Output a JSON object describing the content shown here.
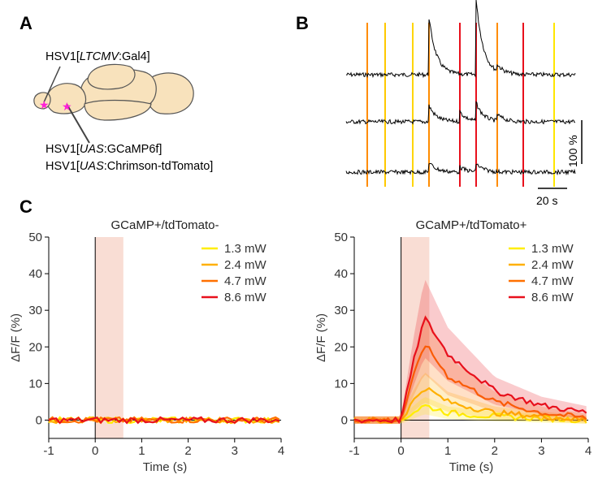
{
  "panels": {
    "a_letter": "A",
    "b_letter": "B",
    "c_letter": "C"
  },
  "panel_a": {
    "label_top_pre": "HSV1[",
    "label_top_it": "LTCMV",
    "label_top_post": ":Gal4]",
    "label_mid_pre": "HSV1[",
    "label_mid_it": "UAS",
    "label_mid_post": ":GCaMP6f]",
    "label_bot_pre": "HSV1[",
    "label_bot_it": "UAS",
    "label_bot_post": ":Chrimson-tdTomato]",
    "brain_fill": "#f8e2bc",
    "injection_color": "#ff1fd8"
  },
  "panel_b": {
    "scale_y_label": "100 %",
    "scale_x_label": "20 s",
    "stim_colors": [
      "#ff8c00",
      "#ffc800",
      "#ffd500",
      "#ff8c00",
      "#e8101c",
      "#e8101c",
      "#ff8c00",
      "#e8101c",
      "#ffe600"
    ]
  },
  "chart_data": [
    {
      "type": "line",
      "title": "GCaMP+/tdTomato-",
      "xlabel": "Time (s)",
      "ylabel": "ΔF/F (%)",
      "xlim": [
        -1,
        4
      ],
      "ylim": [
        -5,
        50
      ],
      "xticks": [
        "-1",
        "0",
        "1",
        "2",
        "3",
        "4"
      ],
      "yticks": [
        "0",
        "10",
        "20",
        "30",
        "40",
        "50"
      ],
      "stim_window": [
        0,
        0.5
      ],
      "legend_position": "top-right",
      "series": [
        {
          "name": "1.3 mW",
          "color": "#ffee00",
          "x": [
            -1,
            0,
            0.5,
            1,
            2,
            3,
            4
          ],
          "y": [
            0,
            0,
            0,
            0,
            0,
            0,
            0
          ]
        },
        {
          "name": "2.4 mW",
          "color": "#ffb000",
          "x": [
            -1,
            0,
            0.5,
            1,
            2,
            3,
            4
          ],
          "y": [
            0,
            0,
            0,
            0,
            0,
            0,
            0
          ]
        },
        {
          "name": "4.7 mW",
          "color": "#ff7000",
          "x": [
            -1,
            0,
            0.5,
            1,
            2,
            3,
            4
          ],
          "y": [
            0,
            0,
            0,
            0,
            0,
            0,
            0
          ]
        },
        {
          "name": "8.6 mW",
          "color": "#e8101c",
          "x": [
            -1,
            0,
            0.5,
            1,
            2,
            3,
            4
          ],
          "y": [
            0,
            0,
            0,
            0,
            0,
            0,
            0
          ]
        }
      ]
    },
    {
      "type": "line",
      "title": "GCaMP+/tdTomato+",
      "xlabel": "Time (s)",
      "ylabel": "ΔF/F (%)",
      "xlim": [
        -1,
        4
      ],
      "ylim": [
        -5,
        50
      ],
      "xticks": [
        "-1",
        "0",
        "1",
        "2",
        "3",
        "4"
      ],
      "yticks": [
        "0",
        "10",
        "20",
        "30",
        "40",
        "50"
      ],
      "stim_window": [
        0,
        0.5
      ],
      "legend_position": "top-right",
      "series": [
        {
          "name": "1.3 mW",
          "color": "#ffee00",
          "x": [
            -1,
            0,
            0.25,
            0.5,
            1,
            2,
            3,
            4
          ],
          "y": [
            0,
            0,
            2,
            4,
            2,
            1,
            0.5,
            0
          ]
        },
        {
          "name": "2.4 mW",
          "color": "#ffb000",
          "x": [
            -1,
            0,
            0.25,
            0.5,
            1,
            2,
            3,
            4
          ],
          "y": [
            0,
            0,
            5,
            9,
            5,
            2,
            1,
            0
          ]
        },
        {
          "name": "4.7 mW",
          "color": "#ff7000",
          "x": [
            -1,
            0,
            0.25,
            0.5,
            1,
            2,
            3,
            4
          ],
          "y": [
            0,
            0,
            11,
            21,
            12,
            5,
            2,
            0.5
          ]
        },
        {
          "name": "8.6 mW",
          "color": "#e8101c",
          "x": [
            -1,
            0,
            0.25,
            0.5,
            1,
            2,
            3,
            4
          ],
          "y": [
            0,
            0,
            15,
            28,
            18,
            8,
            4,
            2
          ]
        }
      ]
    }
  ]
}
